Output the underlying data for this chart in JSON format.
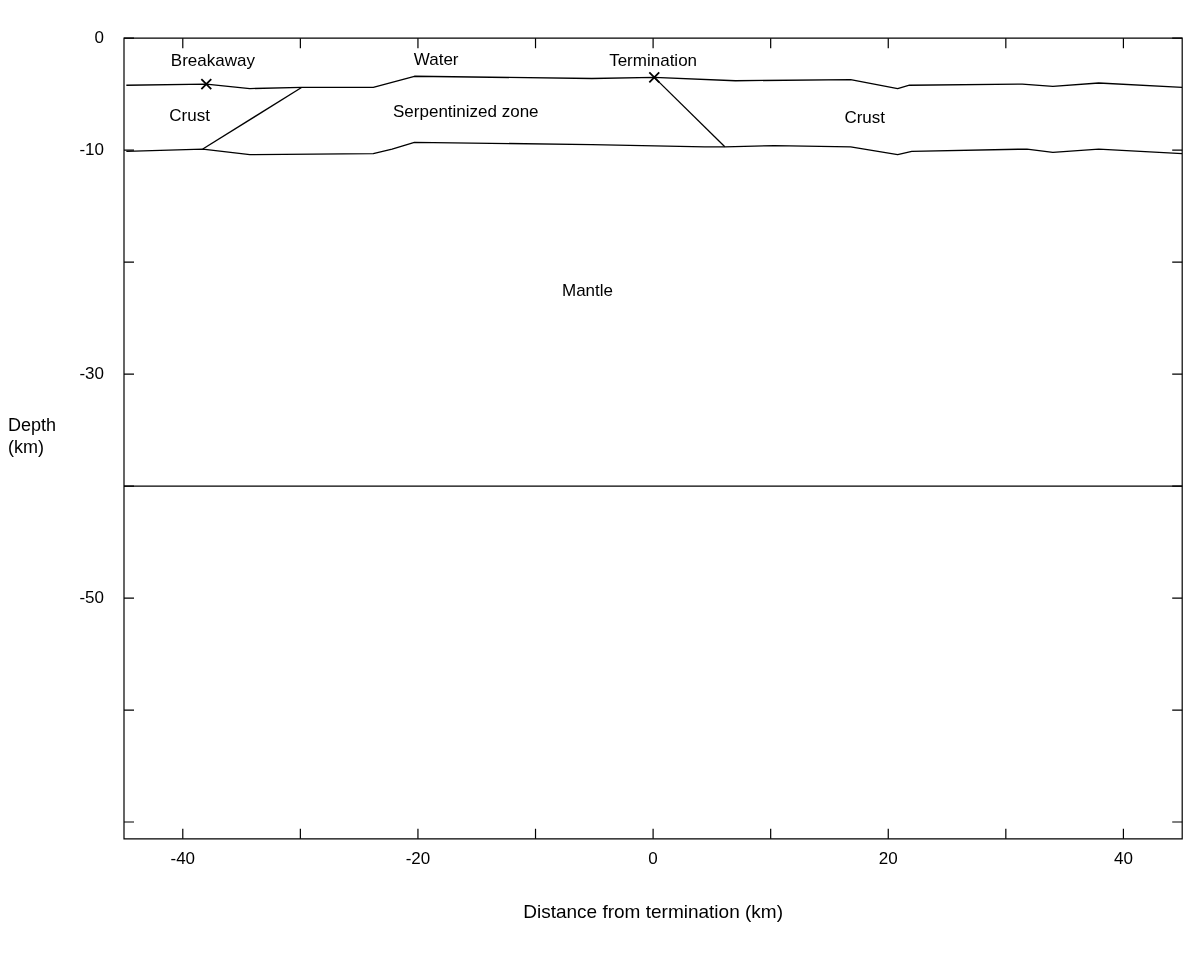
{
  "chart_data": {
    "type": "line",
    "xlabel": "Distance from termination (km)",
    "ylabel": "Depth (km)",
    "xlim": [
      -45,
      45
    ],
    "xticks": [
      {
        "value": -40,
        "label": "-40"
      },
      {
        "value": -30,
        "label": null
      },
      {
        "value": -20,
        "label": "-20"
      },
      {
        "value": -10,
        "label": null
      },
      0,
      {
        "value": 10,
        "label": null
      },
      20,
      {
        "value": 30,
        "label": null
      },
      40
    ],
    "ylim": [
      -71.5,
      0
    ],
    "yticks": [
      0,
      -10,
      {
        "value": -20,
        "label": null
      },
      -30,
      {
        "value": -40,
        "label": null
      },
      -50,
      {
        "value": -60,
        "label": null
      },
      {
        "value": -70,
        "label": null
      }
    ],
    "grid": false,
    "legend": false,
    "line_style": "solid",
    "series": [
      {
        "color": "#000000",
        "x": [
          -44.8,
          -38.0,
          -34.3,
          -29.9,
          -23.8,
          -20.3,
          -5.2,
          0.1,
          7.0,
          16.8,
          20.8,
          21.8,
          31.4,
          34.0,
          37.9,
          45
        ],
        "values": [
          -4.2,
          -4.1,
          -4.5,
          -4.4,
          -4.4,
          -3.4,
          -3.6,
          -3.5,
          -3.8,
          -3.7,
          -4.5,
          -4.2,
          -4.1,
          -4.3,
          -4.0,
          -4.4
        ]
      },
      {
        "color": "#000000",
        "x": [
          -44.8,
          -38.3,
          -34.3,
          -23.8,
          -22.2,
          -20.3,
          -5.2,
          4.4,
          6.1,
          10.3,
          16.8,
          20.8,
          22.0,
          31.8,
          34.0,
          37.9,
          45
        ],
        "values": [
          -10.1,
          -9.9,
          -10.4,
          -10.3,
          -9.9,
          -9.3,
          -9.5,
          -9.7,
          -9.7,
          -9.6,
          -9.7,
          -10.4,
          -10.1,
          -9.9,
          -10.2,
          -9.9,
          -10.3
        ]
      },
      {
        "color": "#000000",
        "x": [
          -38.3,
          -29.9
        ],
        "values": [
          -9.9,
          -4.4
        ]
      },
      {
        "color": "#000000",
        "x": [
          0.1,
          6.1
        ],
        "values": [
          -3.5,
          -9.7
        ]
      },
      {
        "type": "scatter",
        "marker": "cross",
        "color": "#000000",
        "x": [
          -38.0,
          0.1
        ],
        "values": [
          -4.1,
          -3.5
        ]
      }
    ],
    "ref_lines": [
      {
        "axis": "y",
        "value": -40,
        "label": null,
        "color": "#000000"
      }
    ],
    "annotations": [
      "Breakaway",
      "Water",
      "Termination",
      "Crust",
      "Serpentinized zone",
      "Crust",
      "Mantle"
    ]
  }
}
